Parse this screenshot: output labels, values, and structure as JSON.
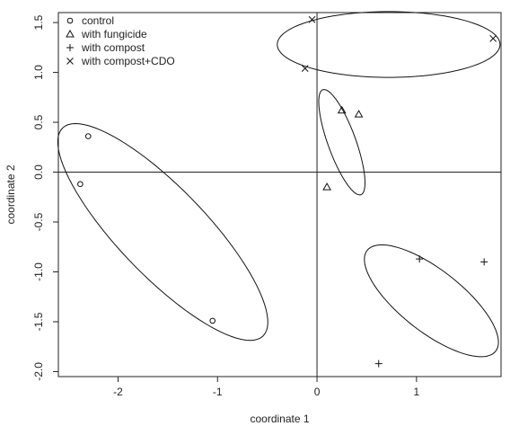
{
  "chart_data": {
    "type": "scatter",
    "xlabel": "coordinate 1",
    "ylabel": "coordinate 2",
    "xlim": [
      -2.6,
      1.85
    ],
    "ylim": [
      -2.05,
      1.6
    ],
    "xticks": [
      -2,
      -1,
      0,
      1
    ],
    "xtick_labels": [
      "-2",
      "-1",
      "0",
      "1"
    ],
    "yticks": [
      -2.0,
      -1.5,
      -1.0,
      -0.5,
      0.0,
      0.5,
      1.0,
      1.5
    ],
    "ytick_labels": [
      "-2.0",
      "-1.5",
      "-1.0",
      "-0.5",
      "0.0",
      "0.5",
      "1.0",
      "1.5"
    ],
    "reference_lines": {
      "x": 0,
      "y": 0
    },
    "legend_position": "top-left",
    "series": [
      {
        "name": "control",
        "marker": "circle",
        "points": [
          [
            -2.3,
            0.36
          ],
          [
            -2.38,
            -0.12
          ],
          [
            -1.05,
            -1.49
          ]
        ],
        "ellipse": {
          "center": [
            -1.55,
            -0.6
          ],
          "rx": 1.45,
          "ry": 0.44,
          "angle_deg": -46
        }
      },
      {
        "name": "with fungicide",
        "marker": "triangle",
        "points": [
          [
            0.25,
            0.62
          ],
          [
            0.42,
            0.58
          ],
          [
            0.1,
            -0.15
          ]
        ],
        "ellipse": {
          "center": [
            0.25,
            0.3
          ],
          "rx": 0.56,
          "ry": 0.14,
          "angle_deg": -70
        }
      },
      {
        "name": "with compost",
        "marker": "plus",
        "points": [
          [
            1.03,
            -0.87
          ],
          [
            1.68,
            -0.9
          ],
          [
            0.62,
            -1.92
          ]
        ],
        "ellipse": {
          "center": [
            1.15,
            -1.29
          ],
          "rx": 0.82,
          "ry": 0.31,
          "angle_deg": -38
        }
      },
      {
        "name": "with compost+CDO",
        "marker": "x",
        "points": [
          [
            -0.05,
            1.53
          ],
          [
            1.77,
            1.34
          ],
          [
            -0.12,
            1.04
          ]
        ],
        "ellipse": {
          "center": [
            0.72,
            1.28
          ],
          "rx": 1.12,
          "ry": 0.33,
          "angle_deg": 0
        }
      }
    ]
  }
}
